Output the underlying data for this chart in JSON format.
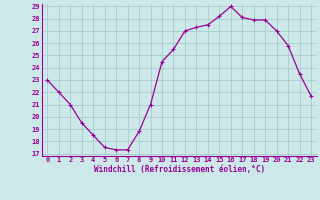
{
  "x": [
    0,
    1,
    2,
    3,
    4,
    5,
    6,
    7,
    8,
    9,
    10,
    11,
    12,
    13,
    14,
    15,
    16,
    17,
    18,
    19,
    20,
    21,
    22,
    23
  ],
  "y": [
    23,
    22,
    21,
    19.5,
    18.5,
    17.5,
    17.3,
    17.3,
    18.8,
    21,
    24.5,
    25.5,
    27,
    27.3,
    27.5,
    28.2,
    29,
    28.1,
    27.9,
    27.9,
    27,
    25.8,
    23.5,
    21.7
  ],
  "line_color": "#990099",
  "marker": "+",
  "marker_size": 3,
  "linewidth": 0.9,
  "bg_color": "#cce8e8",
  "grid_color": "#aacccc",
  "xlabel": "Windchill (Refroidissement éolien,°C)",
  "xlabel_fontsize": 5.5,
  "tick_fontsize": 5,
  "ylim": [
    17,
    29
  ],
  "xlim": [
    -0.5,
    23.5
  ],
  "yticks": [
    17,
    18,
    19,
    20,
    21,
    22,
    23,
    24,
    25,
    26,
    27,
    28,
    29
  ],
  "xticks": [
    0,
    1,
    2,
    3,
    4,
    5,
    6,
    7,
    8,
    9,
    10,
    11,
    12,
    13,
    14,
    15,
    16,
    17,
    18,
    19,
    20,
    21,
    22,
    23
  ]
}
